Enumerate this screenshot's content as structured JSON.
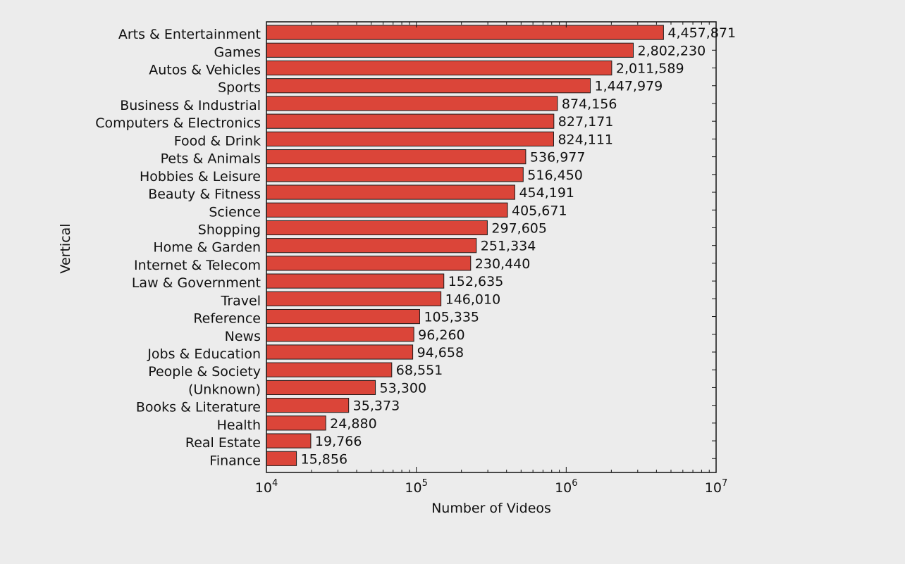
{
  "chart_data": {
    "type": "bar",
    "orientation": "horizontal",
    "xscale": "log",
    "xlim": [
      10000,
      10000000
    ],
    "xlabel": "Number of Videos",
    "ylabel": "Vertical",
    "bar_color": "#db4539",
    "bar_edge_color": "#1a1a1a",
    "background_color": "#ececec",
    "grid": false,
    "x_ticks": [
      {
        "base": "10",
        "exp": "4",
        "value": 10000
      },
      {
        "base": "10",
        "exp": "5",
        "value": 100000
      },
      {
        "base": "10",
        "exp": "6",
        "value": 1000000
      },
      {
        "base": "10",
        "exp": "7",
        "value": 10000000
      }
    ],
    "categories": [
      "Arts & Entertainment",
      "Games",
      "Autos & Vehicles",
      "Sports",
      "Business & Industrial",
      "Computers & Electronics",
      "Food & Drink",
      "Pets & Animals",
      "Hobbies & Leisure",
      "Beauty & Fitness",
      "Science",
      "Shopping",
      "Home & Garden",
      "Internet & Telecom",
      "Law & Government",
      "Travel",
      "Reference",
      "News",
      "Jobs & Education",
      "People & Society",
      "(Unknown)",
      "Books & Literature",
      "Health",
      "Real Estate",
      "Finance"
    ],
    "values": [
      4457871,
      2802230,
      2011589,
      1447979,
      874156,
      827171,
      824111,
      536977,
      516450,
      454191,
      405671,
      297605,
      251334,
      230440,
      152635,
      146010,
      105335,
      96260,
      94658,
      68551,
      53300,
      35373,
      24880,
      19766,
      15856
    ],
    "value_labels": [
      "4,457,871",
      "2,802,230",
      "2,011,589",
      "1,447,979",
      "874,156",
      "827,171",
      "824,111",
      "536,977",
      "516,450",
      "454,191",
      "405,671",
      "297,605",
      "251,334",
      "230,440",
      "152,635",
      "146,010",
      "105,335",
      "96,260",
      "94,658",
      "68,551",
      "53,300",
      "35,373",
      "24,880",
      "19,766",
      "15,856"
    ]
  }
}
